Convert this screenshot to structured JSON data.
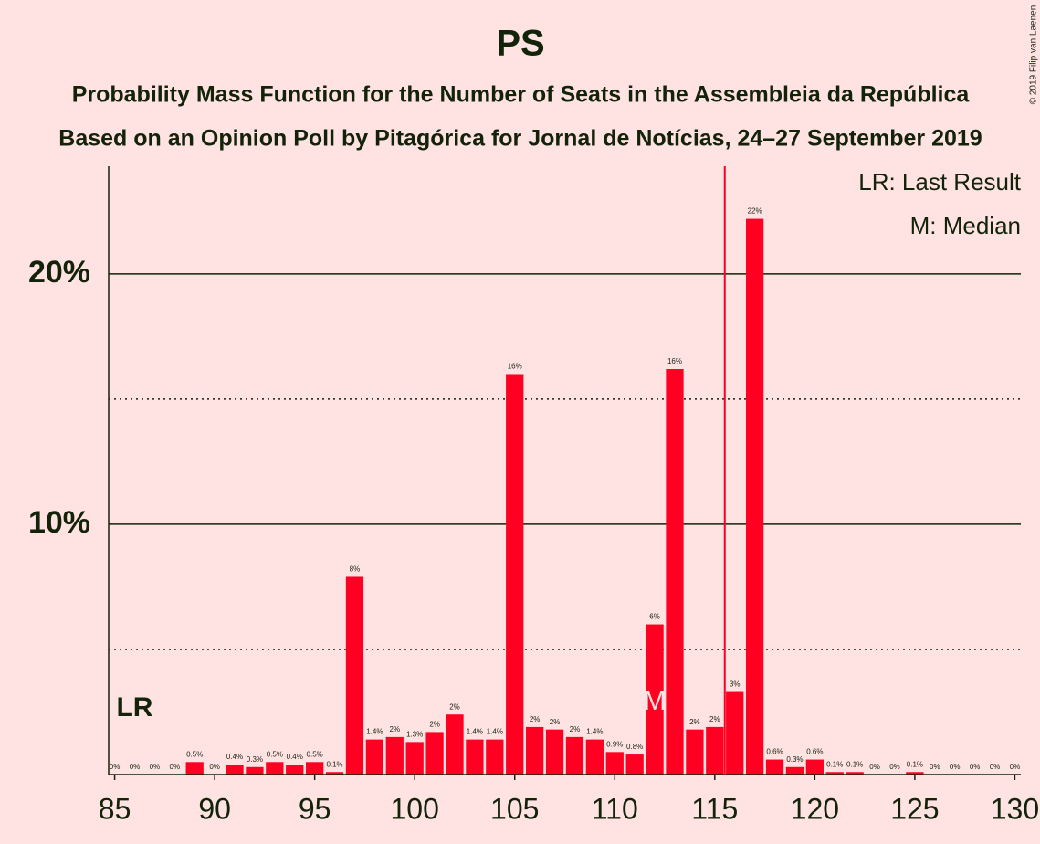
{
  "chart_data": {
    "type": "bar",
    "title": "PS",
    "subtitle": "Probability Mass Function for the Number of Seats in the Assembleia da República",
    "subtitle2": "Based on an Opinion Poll by Pitagórica for Jornal de Notícias, 24–27 September 2019",
    "copyright": "© 2019 Filip van Laenen",
    "legend": [
      "LR: Last Result",
      "M: Median"
    ],
    "color": "#ff0022",
    "x": [
      85,
      86,
      87,
      88,
      89,
      90,
      91,
      92,
      93,
      94,
      95,
      96,
      97,
      98,
      99,
      100,
      101,
      102,
      103,
      104,
      105,
      106,
      107,
      108,
      109,
      110,
      111,
      112,
      113,
      114,
      115,
      116,
      117,
      118,
      119,
      120,
      121,
      122,
      123,
      124,
      125,
      126,
      127,
      128,
      129,
      130
    ],
    "values": [
      0,
      0,
      0,
      0,
      0.5,
      0,
      0.4,
      0.3,
      0.5,
      0.4,
      0.5,
      0.1,
      7.9,
      1.4,
      1.5,
      1.3,
      1.7,
      2.4,
      1.4,
      1.4,
      16.0,
      1.9,
      1.8,
      1.5,
      1.4,
      0.9,
      0.8,
      6.0,
      16.2,
      1.8,
      1.9,
      3.3,
      22.2,
      0.6,
      0.3,
      0.6,
      0.1,
      0.1,
      0,
      0,
      0.1,
      0,
      0,
      0,
      0,
      0
    ],
    "value_labels": [
      "0%",
      "0%",
      "0%",
      "0%",
      "0.5%",
      "0%",
      "0.4%",
      "0.3%",
      "0.5%",
      "0.4%",
      "0.5%",
      "0.1%",
      "8%",
      "1.4%",
      "2%",
      "1.3%",
      "2%",
      "2%",
      "1.4%",
      "1.4%",
      "16%",
      "2%",
      "2%",
      "2%",
      "1.4%",
      "0.9%",
      "0.8%",
      "6%",
      "16%",
      "2%",
      "2%",
      "3%",
      "22%",
      "0.6%",
      "0.3%",
      "0.6%",
      "0.1%",
      "0.1%",
      "0%",
      "0%",
      "0.1%",
      "0%",
      "0%",
      "0%",
      "0%",
      "0%"
    ],
    "xlim": [
      84.7,
      130.3
    ],
    "xticks": [
      85,
      90,
      95,
      100,
      105,
      110,
      115,
      120,
      125,
      130
    ],
    "ylim": [
      0,
      24.3
    ],
    "yticks": [
      {
        "value": 10,
        "label": "10%"
      },
      {
        "value": 20,
        "label": "20%"
      }
    ],
    "minor_yticks": [
      5,
      15
    ],
    "grid": true,
    "last_result": 86,
    "last_result_label": "LR",
    "median": 112,
    "median_label": "M",
    "majority_line": 115.5
  }
}
